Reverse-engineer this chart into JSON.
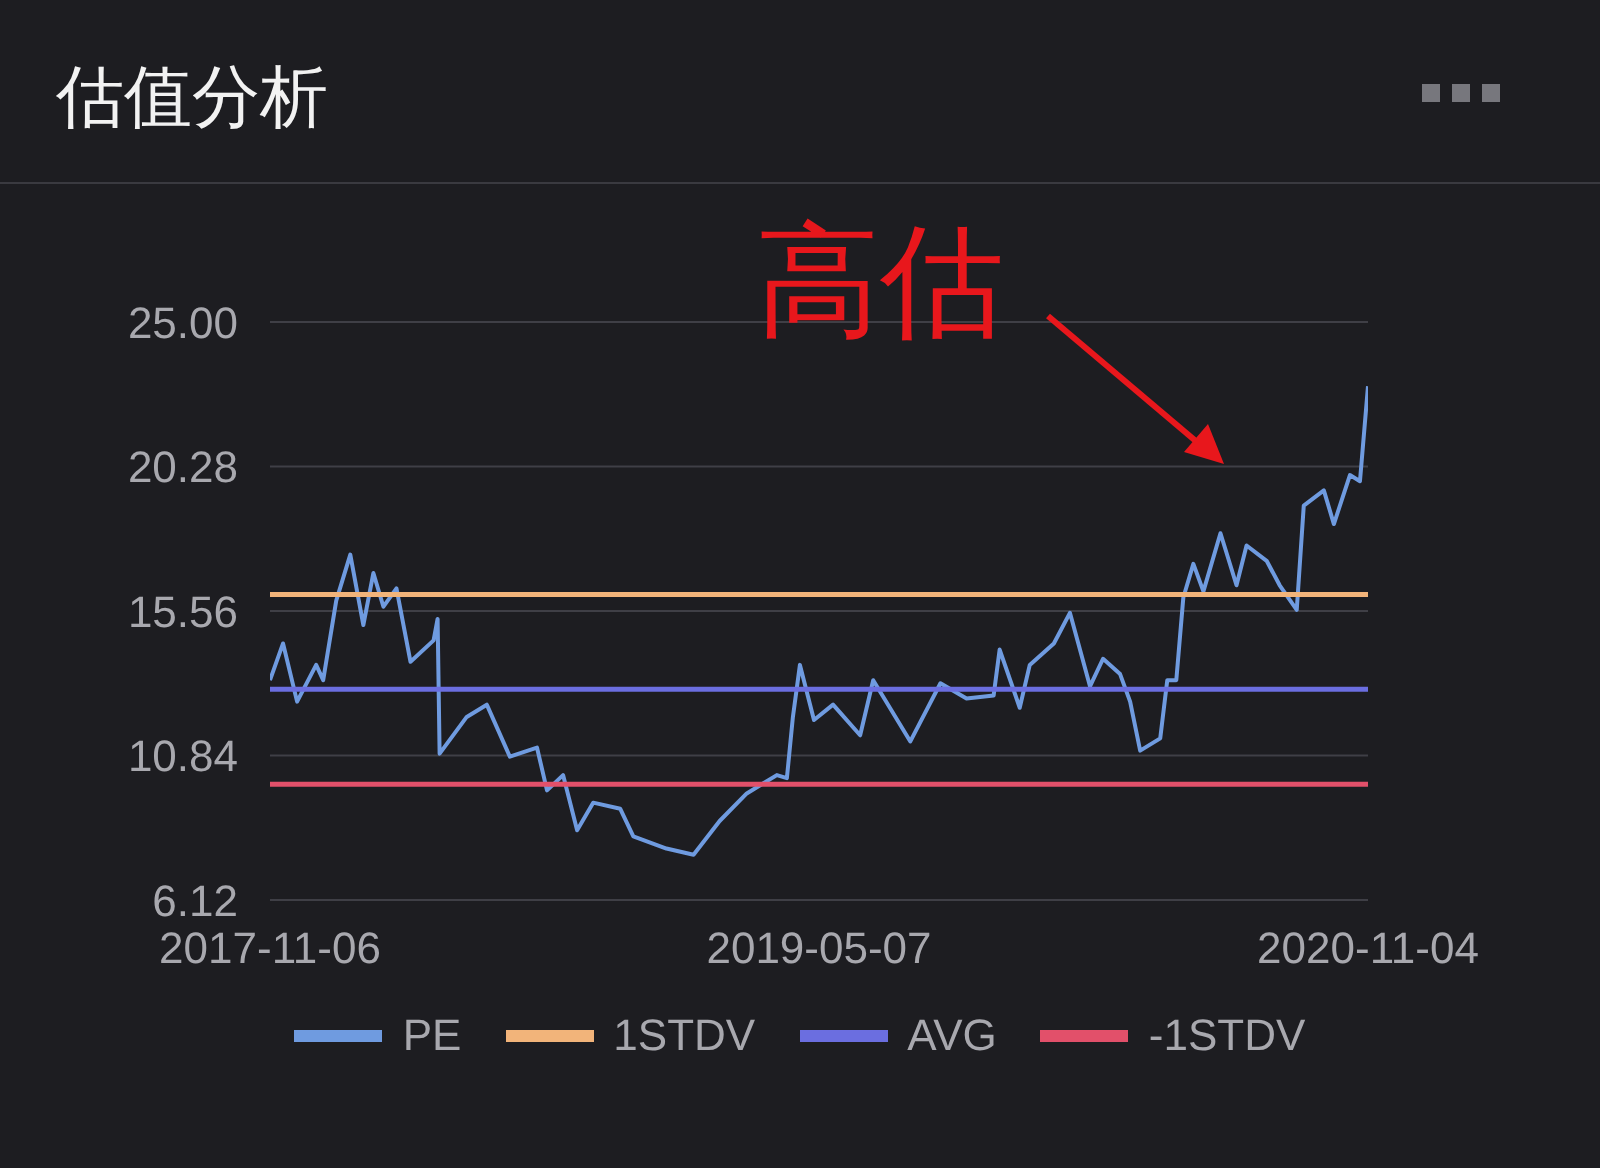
{
  "chart_data": {
    "type": "line",
    "title": "估值分析",
    "annotations": [
      "高估"
    ],
    "xlim": [
      "2017-11-06",
      "2020-11-04"
    ],
    "xticks": [
      "2017-11-06",
      "2019-05-07",
      "2020-11-04"
    ],
    "ylim": [
      6.12,
      25
    ],
    "yticks": [
      6.12,
      10.84,
      15.56,
      20.28,
      {
        "value": 25,
        "label": "25.00"
      }
    ],
    "grid": "y",
    "legend": "bottom",
    "series": [
      {
        "name": "PE",
        "color": "#6f9be0",
        "x": [
          "2017-11-06",
          "2017-11-19",
          "2017-12-03",
          "2017-12-22",
          "2017-12-29",
          "2018-01-11",
          "2018-01-25",
          "2018-02-07",
          "2018-02-17",
          "2018-02-27",
          "2018-03-12",
          "2018-03-26",
          "2018-04-18",
          "2018-04-22",
          "2018-04-24",
          "2018-05-21",
          "2018-06-10",
          "2018-07-03",
          "2018-07-30",
          "2018-08-09",
          "2018-08-25",
          "2018-09-08",
          "2018-09-24",
          "2018-10-21",
          "2018-11-03",
          "2018-12-06",
          "2019-01-02",
          "2019-01-28",
          "2019-02-24",
          "2019-03-26",
          "2019-04-05",
          "2019-04-11",
          "2019-04-18",
          "2019-05-02",
          "2019-05-21",
          "2019-06-17",
          "2019-06-30",
          "2019-08-06",
          "2019-09-05",
          "2019-10-01",
          "2019-10-28",
          "2019-11-03",
          "2019-11-23",
          "2019-12-03",
          "2019-12-27",
          "2020-01-12",
          "2020-02-01",
          "2020-02-14",
          "2020-03-02",
          "2020-03-12",
          "2020-03-22",
          "2020-04-11",
          "2020-04-18",
          "2020-04-27",
          "2020-05-04",
          "2020-05-14",
          "2020-05-24",
          "2020-06-10",
          "2020-06-26",
          "2020-07-06",
          "2020-07-26",
          "2020-08-08",
          "2020-08-25",
          "2020-09-01",
          "2020-09-21",
          "2020-10-01",
          "2020-10-17",
          "2020-10-27",
          "2020-11-04"
        ],
        "values": [
          13.3,
          14.5,
          12.6,
          13.8,
          13.3,
          15.9,
          17.4,
          15.1,
          16.8,
          15.7,
          16.3,
          13.9,
          14.6,
          15.3,
          10.9,
          12.1,
          12.5,
          10.8,
          11.1,
          9.7,
          10.2,
          8.4,
          9.3,
          9.1,
          8.2,
          7.8,
          7.6,
          8.7,
          9.6,
          10.2,
          10.1,
          12.1,
          13.8,
          12.0,
          12.5,
          11.5,
          13.3,
          11.3,
          13.2,
          12.7,
          12.8,
          14.3,
          12.4,
          13.8,
          14.5,
          15.5,
          13.1,
          14.0,
          13.5,
          12.6,
          11.0,
          11.4,
          13.3,
          13.3,
          16.0,
          17.1,
          16.2,
          18.1,
          16.4,
          17.7,
          17.2,
          16.4,
          15.6,
          19.0,
          19.5,
          18.4,
          20.0,
          19.8,
          22.9
        ]
      },
      {
        "name": "1STDV",
        "color": "#f2b47a",
        "x": [
          "2017-11-06",
          "2020-11-04"
        ],
        "values": [
          16.1,
          16.1
        ]
      },
      {
        "name": "AVG",
        "color": "#6b6ee0",
        "x": [
          "2017-11-06",
          "2020-11-04"
        ],
        "values": [
          13.0,
          13.0
        ]
      },
      {
        "name": "-1STDV",
        "color": "#e2506a",
        "x": [
          "2017-11-06",
          "2020-11-04"
        ],
        "values": [
          9.9,
          9.9
        ]
      }
    ]
  }
}
